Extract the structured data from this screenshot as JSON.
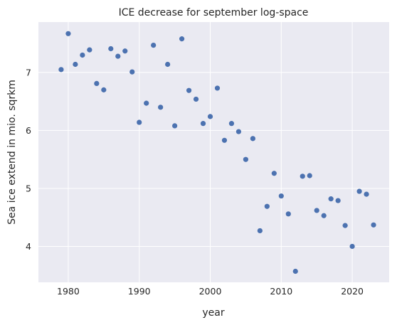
{
  "chart_data": {
    "type": "scatter",
    "title": "ICE decrease for september log-space",
    "xlabel": "year",
    "ylabel": "Sea ice extend in mio. sqrkm",
    "xlim": [
      1975.8,
      2025.2
    ],
    "ylim": [
      3.38,
      7.87
    ],
    "xticks": [
      1980,
      1990,
      2000,
      2010,
      2020
    ],
    "xtick_labels": [
      "1980",
      "1990",
      "2000",
      "2010",
      "2020"
    ],
    "yticks": [
      4,
      5,
      6,
      7
    ],
    "ytick_labels": [
      "4",
      "5",
      "6",
      "7"
    ],
    "grid": true,
    "colors": {
      "background": "#eaeaf2",
      "grid": "#ffffff",
      "point": "#4c72b0",
      "text": "#262626"
    },
    "series": [
      {
        "x": [
          1979,
          1980,
          1981,
          1982,
          1983,
          1984,
          1985,
          1986,
          1987,
          1988,
          1989,
          1990,
          1991,
          1992,
          1993,
          1994,
          1995,
          1996,
          1997,
          1998,
          1999,
          2000,
          2001,
          2002,
          2003,
          2004,
          2005,
          2006,
          2007,
          2008,
          2009,
          2010,
          2011,
          2012,
          2013,
          2014,
          2015,
          2016,
          2017,
          2018,
          2019,
          2020,
          2021,
          2022,
          2023
        ],
        "y": [
          7.05,
          7.67,
          7.14,
          7.3,
          7.39,
          6.81,
          6.7,
          7.41,
          7.28,
          7.37,
          7.01,
          6.14,
          6.47,
          7.47,
          6.4,
          7.14,
          6.08,
          7.58,
          6.69,
          6.54,
          6.12,
          6.24,
          6.73,
          5.83,
          6.12,
          5.98,
          5.5,
          5.86,
          4.27,
          4.69,
          5.26,
          4.87,
          4.56,
          3.57,
          5.21,
          5.22,
          4.62,
          4.53,
          4.82,
          4.79,
          4.36,
          4.0,
          4.95,
          4.9,
          4.37
        ]
      }
    ]
  }
}
